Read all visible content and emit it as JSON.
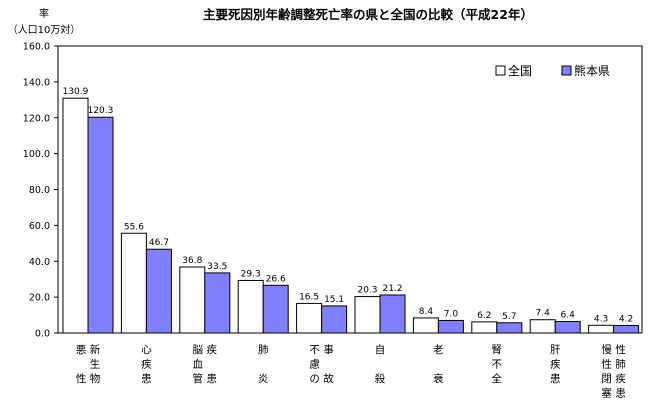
{
  "chart_data": {
    "type": "bar",
    "title": "主要死因別年齢調整死亡率の県と全国の比較（平成22年）",
    "ylabel": "率",
    "ylabel_unit": "（人口10万対）",
    "ylim": [
      0,
      160
    ],
    "yticks": [
      "0.0",
      "20.0",
      "40.0",
      "60.0",
      "80.0",
      "100.0",
      "120.0",
      "140.0",
      "160.0"
    ],
    "grid": false,
    "legend_position": "top-right",
    "categories": [
      [
        "新生物",
        "悪性"
      ],
      [
        "心疾患"
      ],
      [
        "疾患",
        "脳血管"
      ],
      [
        "肺炎"
      ],
      [
        "事故",
        "不慮の"
      ],
      [
        "自殺"
      ],
      [
        "老衰"
      ],
      [
        "腎不全"
      ],
      [
        "肝疾患"
      ],
      [
        "性肺疾患",
        "慢性閉塞"
      ]
    ],
    "series": [
      {
        "name": "全国",
        "color": "#ffffff",
        "values": [
          130.9,
          55.6,
          36.8,
          29.3,
          16.5,
          20.3,
          8.4,
          6.2,
          7.4,
          4.3
        ],
        "labels": [
          "130.9",
          "55.6",
          "36.8",
          "29.3",
          "16.5",
          "20.3",
          "8.4",
          "6.2",
          "7.4",
          "4.3"
        ]
      },
      {
        "name": "熊本県",
        "color": "#8080ff",
        "values": [
          120.3,
          46.7,
          33.5,
          26.6,
          15.1,
          21.2,
          7.0,
          5.7,
          6.4,
          4.2
        ],
        "labels": [
          "120.3",
          "46.7",
          "33.5",
          "26.6",
          "15.1",
          "21.2",
          "7.0",
          "5.7",
          "6.4",
          "4.2"
        ]
      }
    ]
  }
}
